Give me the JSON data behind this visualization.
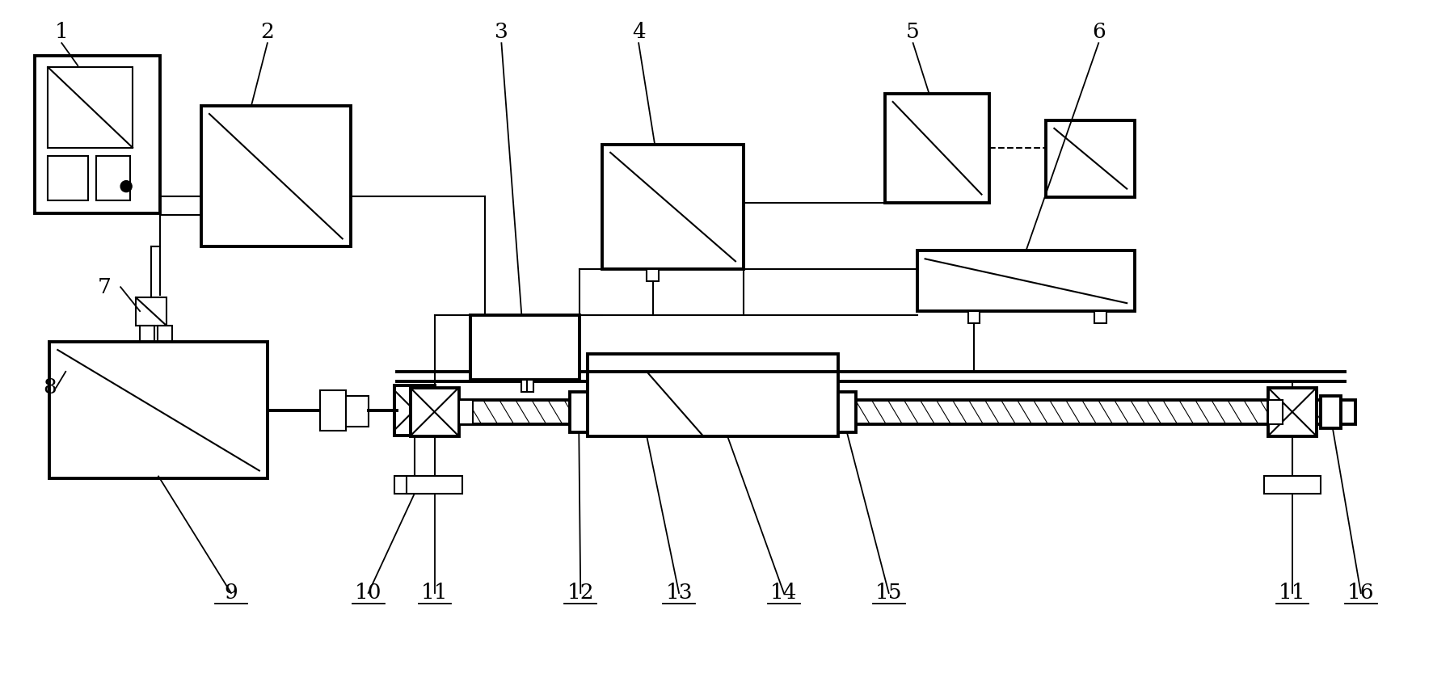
{
  "bg_color": "#ffffff",
  "lc": "#000000",
  "lw": 1.5,
  "lwt": 2.8,
  "fig_w": 17.73,
  "fig_h": 8.49
}
